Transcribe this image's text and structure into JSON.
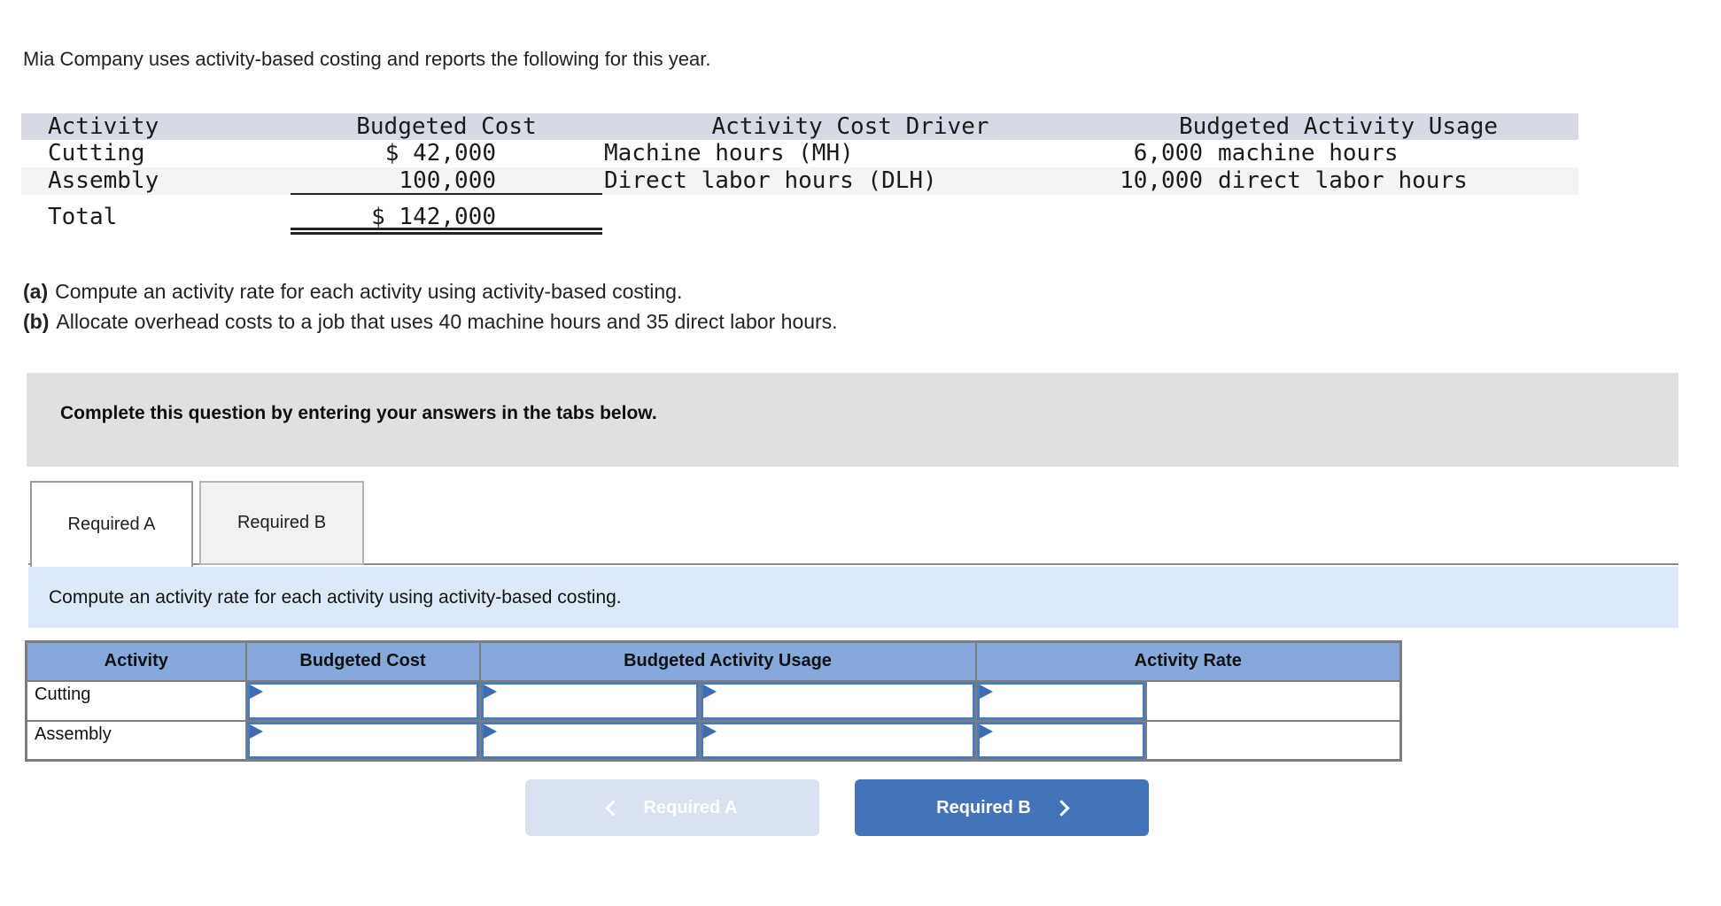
{
  "intro": "Mia Company uses activity-based costing and reports the following for this year.",
  "data_table": {
    "headers": {
      "activity": "Activity",
      "cost": "Budgeted Cost",
      "driver": "Activity Cost Driver",
      "usage": "Budgeted Activity Usage"
    },
    "rows": [
      {
        "activity": "Cutting",
        "cost": "$ 42,000",
        "driver": "Machine hours (MH)",
        "usage_num": "6,000",
        "usage_unit": "machine hours"
      },
      {
        "activity": "Assembly",
        "cost": "100,000",
        "driver": "Direct labor hours (DLH)",
        "usage_num": "10,000",
        "usage_unit": "direct labor hours"
      }
    ],
    "total_label": "Total",
    "total_cost": "$ 142,000"
  },
  "requirements": [
    {
      "tag": "(a)",
      "text": "Compute an activity rate for each activity using activity-based costing."
    },
    {
      "tag": "(b)",
      "text": "Allocate overhead costs to a job that uses 40 machine hours and 35 direct labor hours."
    }
  ],
  "panel": {
    "instruction": "Complete this question by entering your answers in the tabs below."
  },
  "tabs": [
    {
      "label": "Required A",
      "active": true
    },
    {
      "label": "Required B",
      "active": false
    }
  ],
  "banner": "Compute an activity rate for each activity using activity-based costing.",
  "answer_table": {
    "headers": [
      "Activity",
      "Budgeted Cost",
      "Budgeted Activity Usage",
      "Activity Rate"
    ],
    "rows": [
      {
        "label": "Cutting",
        "budgeted_cost": "",
        "usage_a": "",
        "usage_b": "",
        "rate": "",
        "rate_result": ""
      },
      {
        "label": "Assembly",
        "budgeted_cost": "",
        "usage_a": "",
        "usage_b": "",
        "rate": "",
        "rate_result": ""
      }
    ]
  },
  "nav": {
    "prev_label": "Required A",
    "next_label": "Required B"
  },
  "colors": {
    "band": "#d5dae4",
    "altrow": "#f4f4f4",
    "panel": "#e0e0e0",
    "banner": "#dbe9f8",
    "anshdr": "#85a9db",
    "tborder": "#7d7d7d",
    "inborder": "#4d7abc",
    "flag": "#3e6cb2",
    "btnact": "#4573b7",
    "btndis": "#d9e2f1",
    "tabinactive": "#f1f1f1",
    "tabborder": "#9b9b9b",
    "tabborder2": "#b5b5b5",
    "barline": "#8c8c8c"
  }
}
